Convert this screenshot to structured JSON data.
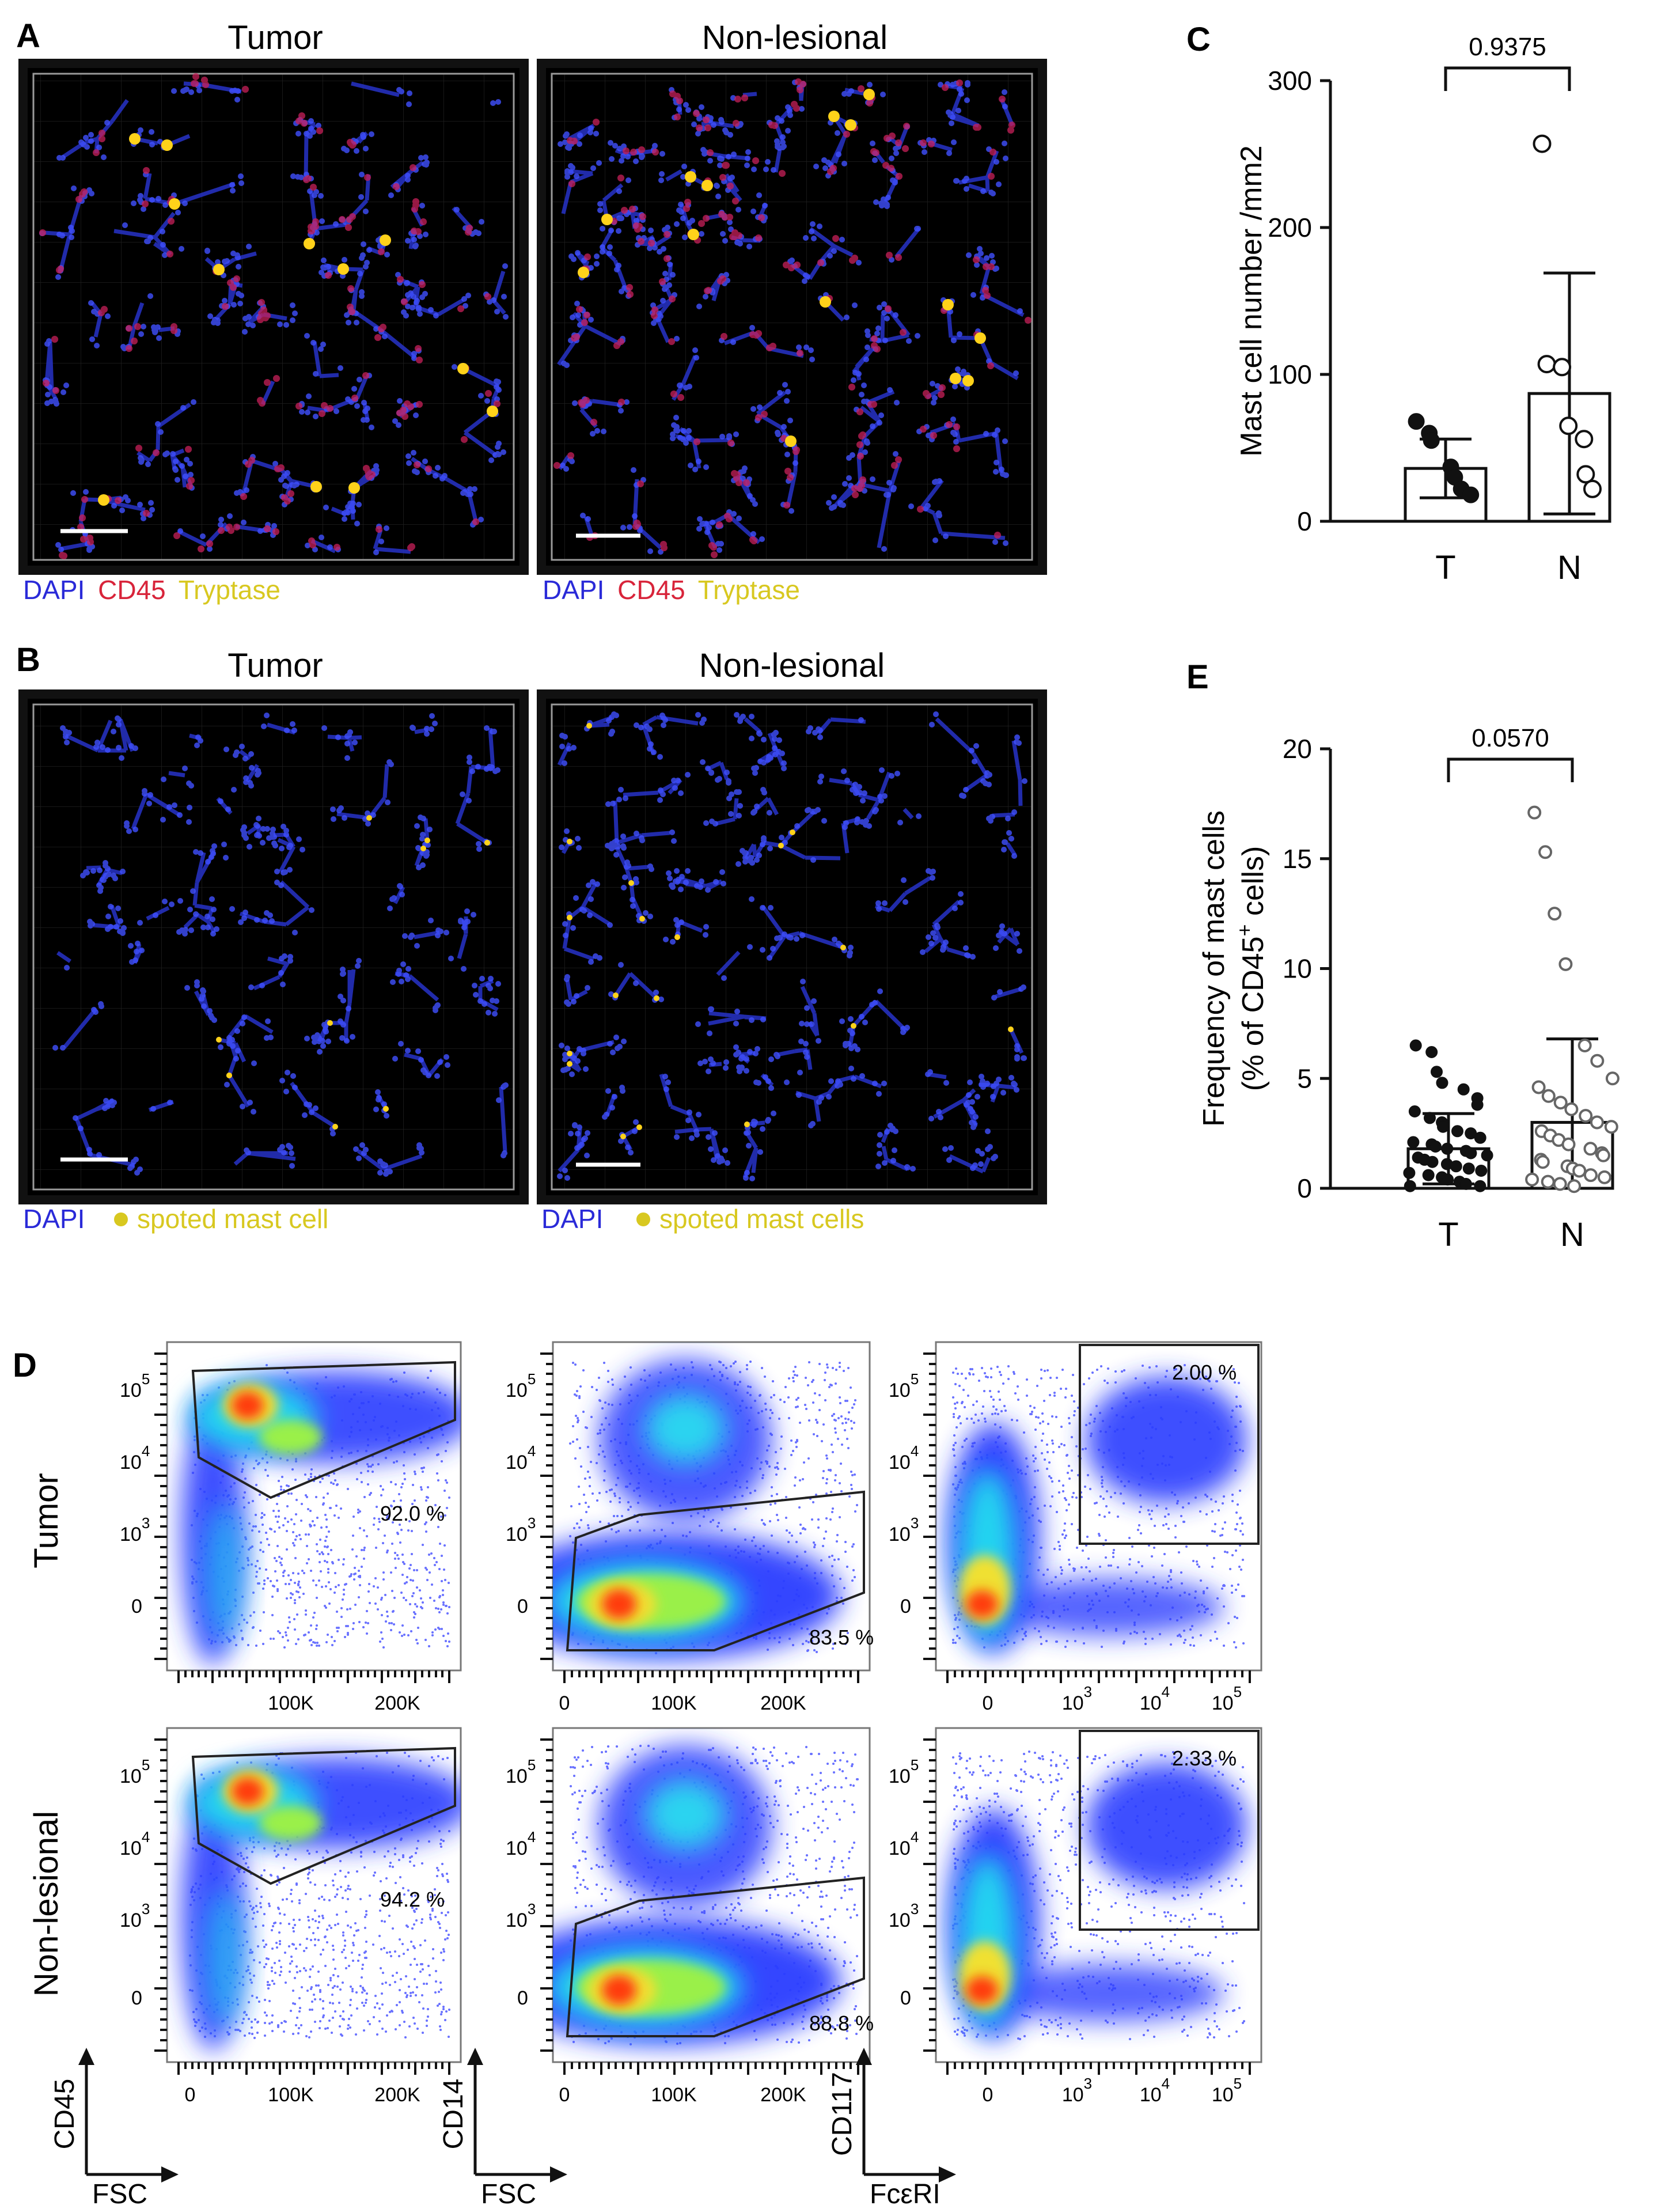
{
  "panel_letters": {
    "a": "A",
    "b": "B",
    "c": "C",
    "d": "D",
    "e": "E"
  },
  "panel_a": {
    "left_title": "Tumor",
    "right_title": "Non-lesional",
    "legend": [
      {
        "text": "DAPI",
        "color": "#2a2ad8"
      },
      {
        "text": "CD45",
        "color": "#d8243a"
      },
      {
        "text": "Tryptase",
        "color": "#d8c820"
      }
    ]
  },
  "panel_b": {
    "left_title": "Tumor",
    "right_title": "Non-lesional",
    "legend_left": {
      "dapi": "DAPI",
      "marker": "spoted mast cell"
    },
    "legend_right": {
      "dapi": "DAPI",
      "marker": "spoted mast cells"
    },
    "dapi_color": "#2a2ad8",
    "marker_color": "#d8c820"
  },
  "chart_data": [
    {
      "type": "bar",
      "panel": "C",
      "ylabel": "Mast cell number /mm2",
      "xlabel": "",
      "categories": [
        "T",
        "N"
      ],
      "ylim": [
        0,
        300
      ],
      "yticks": [
        0,
        100,
        200,
        300
      ],
      "means": [
        36,
        87
      ],
      "sd": [
        20,
        82
      ],
      "points": {
        "T": [
          68,
          60,
          55,
          37,
          30,
          22,
          18
        ],
        "N": [
          257,
          107,
          105,
          65,
          56,
          32,
          22
        ]
      },
      "markers": {
        "T": "filled",
        "N": "open"
      },
      "p_value": "0.9375"
    },
    {
      "type": "bar",
      "panel": "E",
      "ylabel": "Frequency of mast cells",
      "ylabel2": "(% of CD45+ cells)",
      "xlabel": "",
      "categories": [
        "T",
        "N"
      ],
      "ylim": [
        0,
        20
      ],
      "yticks": [
        0,
        5,
        10,
        15,
        20
      ],
      "means": [
        1.8,
        3.0
      ],
      "sd": [
        1.6,
        3.8
      ],
      "points": {
        "T": [
          6.5,
          6.2,
          5.3,
          4.8,
          4.5,
          4.1,
          3.8,
          3.5,
          3.2,
          3.0,
          2.8,
          2.6,
          2.5,
          2.3,
          2.1,
          2.0,
          1.9,
          1.8,
          1.7,
          1.6,
          1.5,
          1.4,
          1.3,
          1.2,
          1.1,
          1.0,
          0.9,
          0.8,
          0.7,
          0.6,
          0.5,
          0.4,
          0.3,
          0.2,
          0.1,
          0.1
        ],
        "N": [
          17.1,
          15.3,
          12.5,
          10.2,
          6.5,
          5.8,
          5.0,
          4.6,
          4.2,
          3.9,
          3.6,
          3.3,
          3.0,
          2.8,
          2.6,
          2.4,
          2.2,
          2.0,
          1.8,
          1.6,
          1.5,
          1.3,
          1.2,
          1.0,
          0.9,
          0.8,
          0.6,
          0.5,
          0.4,
          0.3,
          0.2,
          0.1
        ]
      },
      "markers": {
        "T": "filled",
        "N": "open"
      },
      "p_value": "0.0570"
    }
  ],
  "panel_d": {
    "row_labels": [
      "Tumor",
      "Non-lesional"
    ],
    "gate_percent": [
      [
        "92.0 %",
        "83.5 %",
        "2.00 %"
      ],
      [
        "94.2 %",
        "88.8 %",
        "2.33 %"
      ]
    ],
    "fsc_ticks": [
      "0",
      "100K",
      "200K"
    ],
    "log_ticks": [
      "0",
      "10",
      "10",
      "10",
      "10"
    ],
    "log_exps": [
      "3",
      "4",
      "5"
    ],
    "axis_labels": [
      {
        "y": "CD45",
        "x": "FSC"
      },
      {
        "y": "CD14",
        "x": "FSC"
      },
      {
        "y": "CD117",
        "x": "FcεRI"
      }
    ]
  }
}
